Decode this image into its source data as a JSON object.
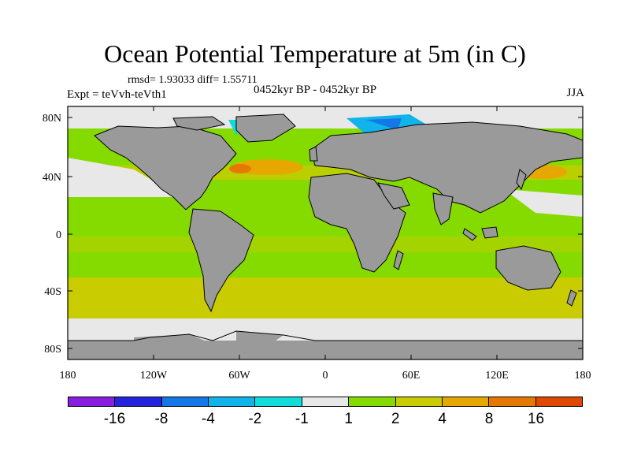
{
  "title": "Ocean Potential Temperature at 5m (in C)",
  "stats": "rmsd= 1.93033 diff= 1.55711",
  "expt": "Expt = teVvh-teVth1",
  "period": "0452kyr BP - 0452kyr BP",
  "season": "JJA",
  "axes": {
    "x_ticks": [
      "180",
      "120W",
      "60W",
      "0",
      "60E",
      "120E",
      "180"
    ],
    "y_ticks": [
      "80N",
      "40N",
      "0",
      "40S",
      "80S"
    ]
  },
  "colors": {
    "land": "#9a9a9a",
    "ocean_base": "#85db00"
  },
  "colorbar": {
    "colors": [
      "#8a1ee0",
      "#2424e0",
      "#1478e6",
      "#10b4ea",
      "#10dcdc",
      "#e8e8e8",
      "#85db00",
      "#c8cc00",
      "#e6a800",
      "#e67800",
      "#e04800"
    ],
    "labels": [
      "-16",
      "-8",
      "-4",
      "-2",
      "-1",
      "1",
      "2",
      "4",
      "8",
      "16"
    ]
  }
}
